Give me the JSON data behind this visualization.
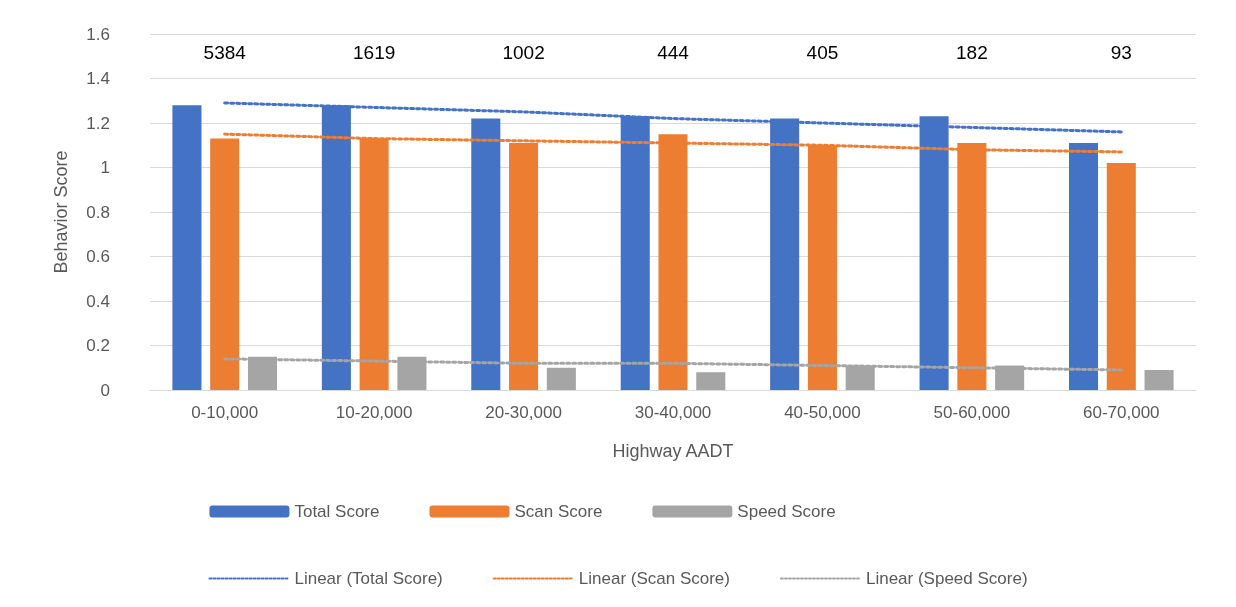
{
  "chart_data": {
    "type": "bar",
    "xlabel": "Highway AADT",
    "ylabel": "Behavior Score",
    "categories": [
      "0-10,000",
      "10-20,000",
      "20-30,000",
      "30-40,000",
      "40-50,000",
      "50-60,000",
      "60-70,000"
    ],
    "series": [
      {
        "name": "Total Score",
        "color": "#4472c4",
        "values": [
          1.28,
          1.28,
          1.22,
          1.23,
          1.22,
          1.23,
          1.11
        ]
      },
      {
        "name": "Scan Score",
        "color": "#ed7d31",
        "values": [
          1.13,
          1.13,
          1.11,
          1.15,
          1.1,
          1.11,
          1.02
        ]
      },
      {
        "name": "Speed Score",
        "color": "#a5a5a5",
        "values": [
          0.15,
          0.15,
          0.1,
          0.08,
          0.11,
          0.11,
          0.09
        ]
      },
      {
        "name": "Linear (Total Score)",
        "type": "line",
        "line_style": "dotted",
        "marker": "none",
        "color": "#4472c4",
        "values": [
          1.29,
          1.27,
          1.25,
          1.22,
          1.2,
          1.18,
          1.16
        ]
      },
      {
        "name": "Linear (Scan Score)",
        "type": "line",
        "line_style": "dotted",
        "marker": "none",
        "color": "#ed7d31",
        "values": [
          1.15,
          1.13,
          1.12,
          1.11,
          1.1,
          1.08,
          1.07
        ]
      },
      {
        "name": "Linear (Speed Score)",
        "type": "line",
        "line_style": "dotted",
        "marker": "none",
        "color": "#a5a5a5",
        "values": [
          0.14,
          0.13,
          0.12,
          0.12,
          0.11,
          0.1,
          0.09
        ]
      }
    ],
    "ylim": [
      0,
      1.6
    ],
    "yticks": [
      0,
      0.2,
      0.4,
      0.6,
      0.8,
      1,
      1.2,
      1.4,
      1.6
    ],
    "grid": "y",
    "legend": "bottom",
    "annotations": [
      "5384",
      "1619",
      "1002",
      "444",
      "405",
      "182",
      "93"
    ]
  }
}
